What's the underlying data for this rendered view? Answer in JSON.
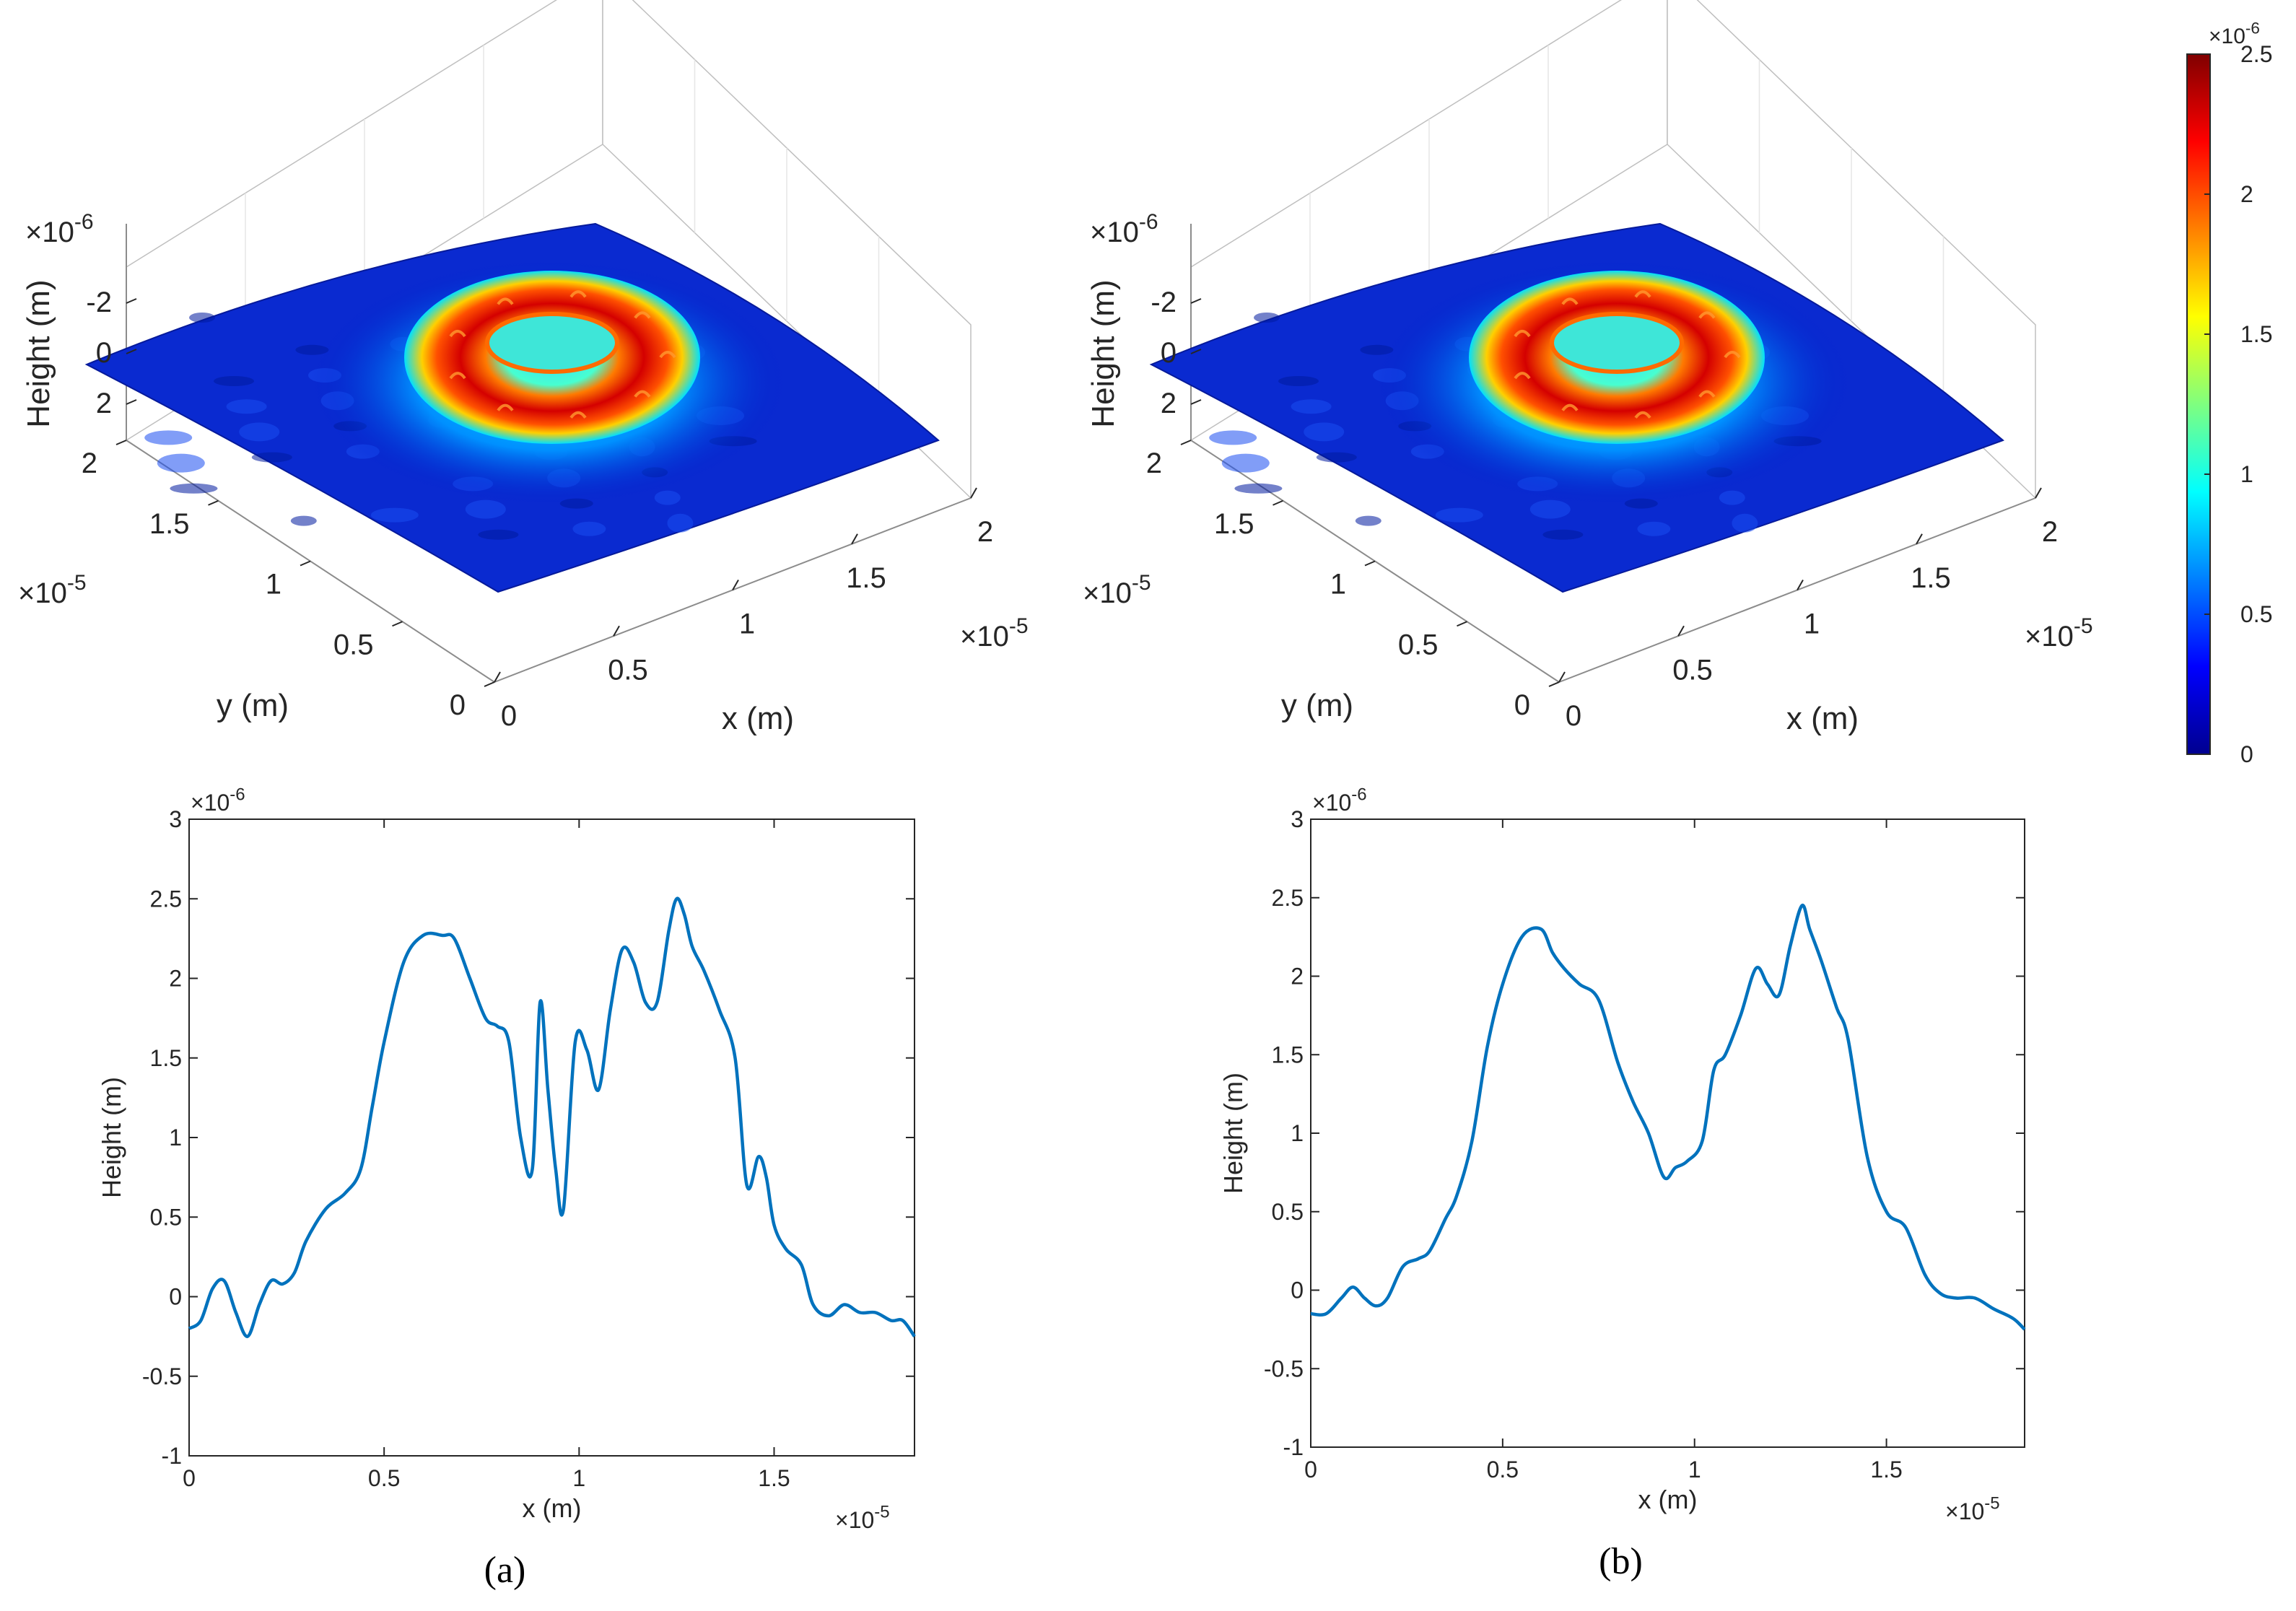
{
  "figure": {
    "panels": [
      {
        "caption": "(a)",
        "surface_xlabel": "x (m)",
        "surface_ylabel": "y (m)",
        "surface_zlabel": "Height (m)",
        "surface_xexp": "×10",
        "surface_yexp": "×10",
        "surface_zexp": "×10",
        "exp5": "-5",
        "exp6": "-6"
      },
      {
        "caption": "(b)",
        "surface_xlabel": "x (m)",
        "surface_ylabel": "y (m)",
        "surface_zlabel": "Height (m)",
        "surface_xexp": "×10",
        "surface_yexp": "×10",
        "surface_zexp": "×10",
        "exp5": "-5",
        "exp6": "-6"
      }
    ],
    "colorbar": {
      "colormap": "jet",
      "ticks": [
        "0",
        "0.5",
        "1",
        "1.5",
        "2",
        "2.5"
      ],
      "exponent_base": "×10",
      "exponent": "-6"
    }
  },
  "chart_data": [
    {
      "type": "surface",
      "panel": "a",
      "xlabel": "x (m)",
      "ylabel": "y (m)",
      "zlabel": "Height (m)",
      "xlim": [
        0,
        2e-05
      ],
      "ylim": [
        0,
        2e-05
      ],
      "zlim": [
        -3e-06,
        3e-06
      ],
      "x_ticks": [
        "0",
        "0.5",
        "1",
        "1.5",
        "2"
      ],
      "y_ticks": [
        "0",
        "0.5",
        "1",
        "1.5",
        "2"
      ],
      "z_ticks": [
        "-2",
        "0",
        "2"
      ],
      "x_multiplier": "×10^-5",
      "y_multiplier": "×10^-5",
      "z_multiplier": "×10^-6",
      "feature": "ring-shaped crater, rim height ~2.3e-6 m, center ~1e-6 m"
    },
    {
      "type": "surface",
      "panel": "b",
      "xlabel": "x (m)",
      "ylabel": "y (m)",
      "zlabel": "Height (m)",
      "xlim": [
        0,
        2e-05
      ],
      "ylim": [
        0,
        2e-05
      ],
      "zlim": [
        -3e-06,
        3e-06
      ],
      "x_ticks": [
        "0",
        "0.5",
        "1",
        "1.5",
        "2"
      ],
      "y_ticks": [
        "0",
        "0.5",
        "1",
        "1.5",
        "2"
      ],
      "z_ticks": [
        "-2",
        "0",
        "2"
      ],
      "x_multiplier": "×10^-5",
      "y_multiplier": "×10^-5",
      "z_multiplier": "×10^-6",
      "feature": "smoother ring-shaped crater, rim height ~2.3e-6 m"
    },
    {
      "type": "line",
      "panel": "a",
      "xlabel": "x (m)",
      "ylabel": "Height (m)",
      "xlim": [
        0,
        1.86e-05
      ],
      "ylim": [
        -1e-06,
        3e-06
      ],
      "x_ticks": [
        "0",
        "0.5",
        "1",
        "1.5"
      ],
      "y_ticks": [
        "-1",
        "-0.5",
        "0",
        "0.5",
        "1",
        "1.5",
        "2",
        "2.5",
        "3"
      ],
      "x_multiplier": "×10^-5",
      "y_multiplier": "×10^-6",
      "series": [
        {
          "color": "#0072BD",
          "x": [
            0,
            0.03,
            0.06,
            0.09,
            0.12,
            0.15,
            0.18,
            0.21,
            0.24,
            0.27,
            0.3,
            0.35,
            0.4,
            0.44,
            0.47,
            0.5,
            0.55,
            0.6,
            0.65,
            0.68,
            0.72,
            0.76,
            0.79,
            0.82,
            0.85,
            0.88,
            0.9,
            0.92,
            0.94,
            0.96,
            0.99,
            1.02,
            1.05,
            1.08,
            1.11,
            1.14,
            1.17,
            1.2,
            1.23,
            1.25,
            1.27,
            1.29,
            1.32,
            1.36,
            1.4,
            1.43,
            1.46,
            1.48,
            1.5,
            1.53,
            1.57,
            1.6,
            1.64,
            1.68,
            1.72,
            1.76,
            1.8,
            1.83,
            1.86
          ],
          "y": [
            -0.2,
            -0.15,
            0.05,
            0.1,
            -0.1,
            -0.25,
            -0.05,
            0.1,
            0.08,
            0.15,
            0.35,
            0.55,
            0.65,
            0.8,
            1.2,
            1.6,
            2.1,
            2.27,
            2.27,
            2.25,
            2.0,
            1.75,
            1.7,
            1.6,
            1.0,
            0.8,
            1.85,
            1.3,
            0.8,
            0.55,
            1.6,
            1.55,
            1.3,
            1.8,
            2.18,
            2.1,
            1.85,
            1.85,
            2.3,
            2.5,
            2.4,
            2.2,
            2.05,
            1.8,
            1.5,
            0.7,
            0.88,
            0.75,
            0.45,
            0.3,
            0.2,
            -0.05,
            -0.12,
            -0.05,
            -0.1,
            -0.1,
            -0.15,
            -0.15,
            -0.25
          ]
        }
      ]
    },
    {
      "type": "line",
      "panel": "b",
      "xlabel": "x (m)",
      "ylabel": "Height (m)",
      "xlim": [
        0,
        1.86e-05
      ],
      "ylim": [
        -1e-06,
        3e-06
      ],
      "x_ticks": [
        "0",
        "0.5",
        "1",
        "1.5"
      ],
      "y_ticks": [
        "-1",
        "-0.5",
        "0",
        "0.5",
        "1",
        "1.5",
        "2",
        "2.5",
        "3"
      ],
      "x_multiplier": "×10^-5",
      "y_multiplier": "×10^-6",
      "series": [
        {
          "color": "#0072BD",
          "x": [
            0,
            0.04,
            0.08,
            0.11,
            0.14,
            0.17,
            0.2,
            0.24,
            0.28,
            0.31,
            0.35,
            0.38,
            0.42,
            0.46,
            0.5,
            0.55,
            0.6,
            0.63,
            0.66,
            0.7,
            0.75,
            0.8,
            0.84,
            0.88,
            0.92,
            0.95,
            0.98,
            1.02,
            1.05,
            1.08,
            1.12,
            1.16,
            1.19,
            1.22,
            1.25,
            1.28,
            1.3,
            1.33,
            1.37,
            1.4,
            1.45,
            1.5,
            1.55,
            1.6,
            1.64,
            1.68,
            1.73,
            1.78,
            1.83,
            1.86
          ],
          "y": [
            -0.15,
            -0.15,
            -0.05,
            0.02,
            -0.05,
            -0.1,
            -0.05,
            0.15,
            0.2,
            0.25,
            0.45,
            0.6,
            0.95,
            1.55,
            1.95,
            2.25,
            2.3,
            2.15,
            2.05,
            1.95,
            1.85,
            1.45,
            1.2,
            1.0,
            0.72,
            0.78,
            0.82,
            0.95,
            1.4,
            1.5,
            1.75,
            2.05,
            1.95,
            1.88,
            2.2,
            2.45,
            2.3,
            2.1,
            1.8,
            1.6,
            0.85,
            0.5,
            0.4,
            0.1,
            -0.02,
            -0.05,
            -0.05,
            -0.12,
            -0.18,
            -0.25
          ]
        }
      ]
    }
  ]
}
